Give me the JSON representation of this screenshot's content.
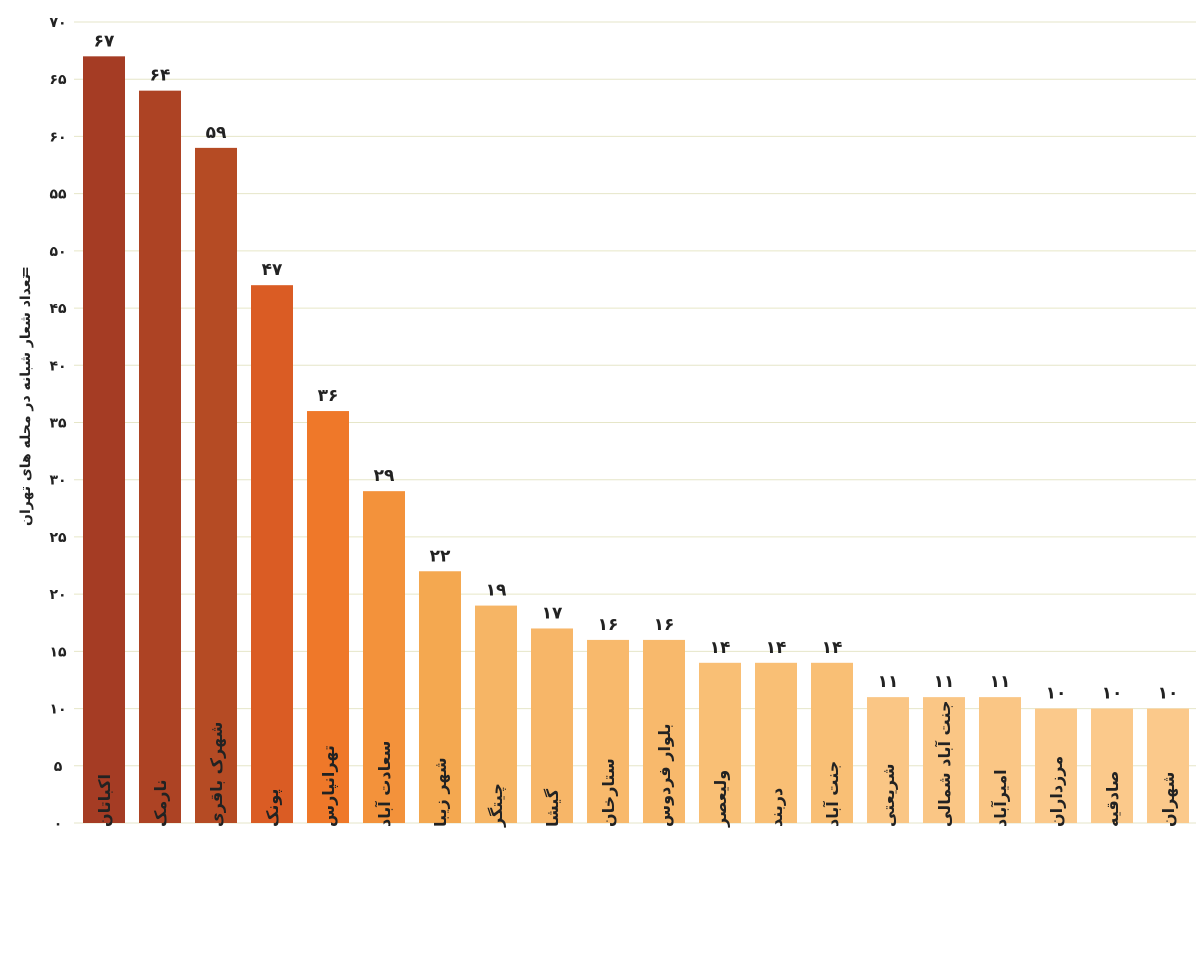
{
  "chart_data": {
    "type": "bar",
    "title": "",
    "ylabel": "تعداد شعار شبانه در محله های تهران",
    "ylabel_marker": "=",
    "ylim": [
      0,
      70
    ],
    "yticks": [
      {
        "value": 0,
        "label": "۰"
      },
      {
        "value": 5,
        "label": "۵"
      },
      {
        "value": 10,
        "label": "۱۰"
      },
      {
        "value": 15,
        "label": "۱۵"
      },
      {
        "value": 20,
        "label": "۲۰"
      },
      {
        "value": 25,
        "label": "۲۵"
      },
      {
        "value": 30,
        "label": "۳۰"
      },
      {
        "value": 35,
        "label": "۳۵"
      },
      {
        "value": 40,
        "label": "۴۰"
      },
      {
        "value": 45,
        "label": "۴۵"
      },
      {
        "value": 50,
        "label": "۵۰"
      },
      {
        "value": 55,
        "label": "۵۵"
      },
      {
        "value": 60,
        "label": "۶۰"
      },
      {
        "value": 65,
        "label": "۶۵"
      },
      {
        "value": 70,
        "label": "۷۰"
      }
    ],
    "grid": true,
    "categories": [
      "اکباتان",
      "نارمک",
      "شهرک باقری",
      "پونک",
      "تهرانپارس",
      "سعادت آباد",
      "شهر زیبا",
      "چیتگر",
      "گیشا",
      "ستارخان",
      "بلوار فردوس",
      "ولیعصر",
      "دربند",
      "جنت آباد",
      "شریعتی",
      "جنت آباد شمالی",
      "امیرآباد",
      "مرزداران",
      "صادقیه",
      "شهران"
    ],
    "values": [
      67,
      64,
      59,
      47,
      36,
      29,
      22,
      19,
      17,
      16,
      16,
      14,
      14,
      14,
      11,
      11,
      11,
      10,
      10,
      10
    ],
    "value_labels": [
      "۶۷",
      "۶۴",
      "۵۹",
      "۴۷",
      "۳۶",
      "۲۹",
      "۲۲",
      "۱۹",
      "۱۷",
      "۱۶",
      "۱۶",
      "۱۴",
      "۱۴",
      "۱۴",
      "۱۱",
      "۱۱",
      "۱۱",
      "۱۰",
      "۱۰",
      "۱۰"
    ],
    "colors": [
      "#a53c24",
      "#ad4324",
      "#b54b24",
      "#da5c24",
      "#ef7829",
      "#f3923b",
      "#f4a850",
      "#f6b565",
      "#f7b668",
      "#f8b96c",
      "#f8b96c",
      "#f9bf75",
      "#f9bf75",
      "#f9bf75",
      "#fac685",
      "#fac685",
      "#fac685",
      "#fbc98b",
      "#fbc98b",
      "#fbc98b"
    ]
  }
}
